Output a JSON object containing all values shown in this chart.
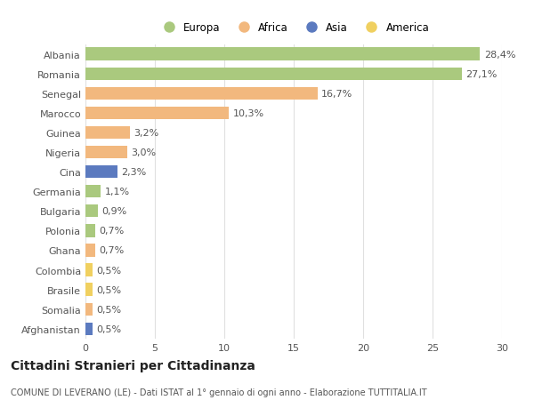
{
  "categories": [
    "Albania",
    "Romania",
    "Senegal",
    "Marocco",
    "Guinea",
    "Nigeria",
    "Cina",
    "Germania",
    "Bulgaria",
    "Polonia",
    "Ghana",
    "Colombia",
    "Brasile",
    "Somalia",
    "Afghanistan"
  ],
  "values": [
    28.4,
    27.1,
    16.7,
    10.3,
    3.2,
    3.0,
    2.3,
    1.1,
    0.9,
    0.7,
    0.7,
    0.5,
    0.5,
    0.5,
    0.5
  ],
  "labels": [
    "28,4%",
    "27,1%",
    "16,7%",
    "10,3%",
    "3,2%",
    "3,0%",
    "2,3%",
    "1,1%",
    "0,9%",
    "0,7%",
    "0,7%",
    "0,5%",
    "0,5%",
    "0,5%",
    "0,5%"
  ],
  "continents": [
    "Europa",
    "Europa",
    "Africa",
    "Africa",
    "Africa",
    "Africa",
    "Asia",
    "Europa",
    "Europa",
    "Europa",
    "Africa",
    "America",
    "America",
    "Africa",
    "Asia"
  ],
  "colors": {
    "Europa": "#aac97e",
    "Africa": "#f2b87e",
    "Asia": "#5b7abf",
    "America": "#f0d060"
  },
  "xlim": [
    0,
    30
  ],
  "xticks": [
    0,
    5,
    10,
    15,
    20,
    25,
    30
  ],
  "title": "Cittadini Stranieri per Cittadinanza",
  "subtitle": "COMUNE DI LEVERANO (LE) - Dati ISTAT al 1° gennaio di ogni anno - Elaborazione TUTTITALIA.IT",
  "background_color": "#ffffff",
  "bar_height": 0.65,
  "grid_color": "#e0e0e0",
  "label_fontsize": 8,
  "tick_fontsize": 8,
  "title_fontsize": 10,
  "subtitle_fontsize": 7
}
